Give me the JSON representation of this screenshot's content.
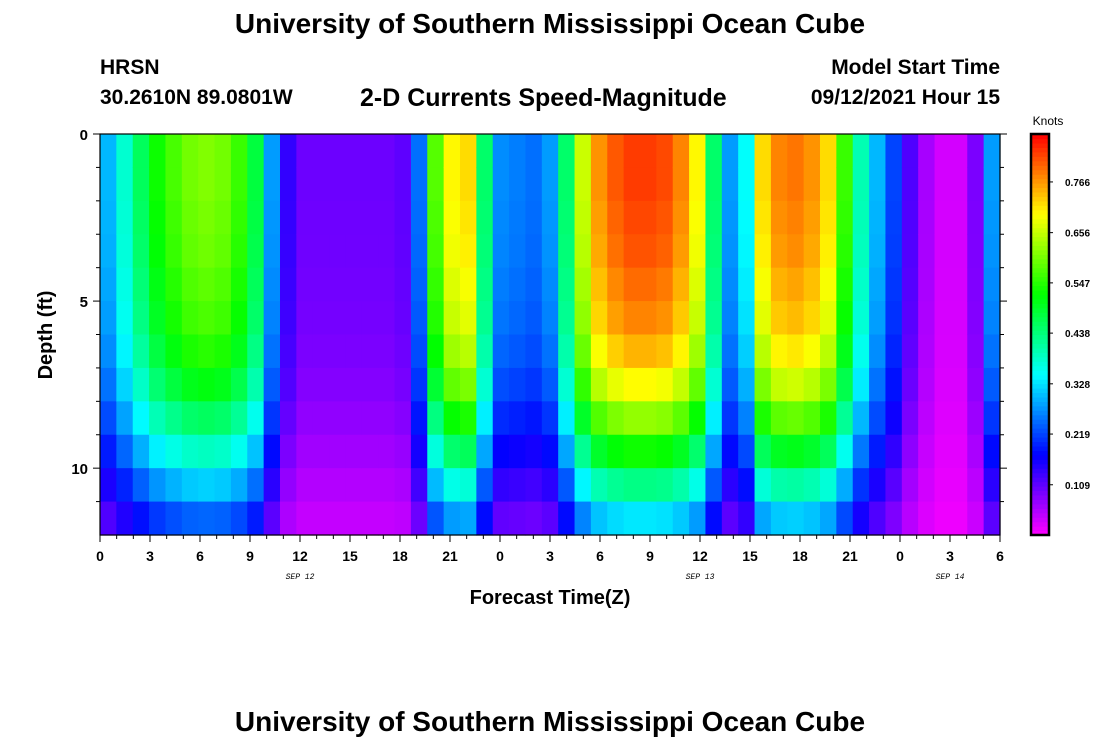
{
  "header": {
    "title": "University of Southern Mississippi Ocean Cube",
    "station": "HRSN",
    "coords": "30.2610N  89.0801W",
    "subtitle": "2-D Currents Speed-Magnitude",
    "model_label": "Model Start Time",
    "model_time": "09/12/2021 Hour 15"
  },
  "footer": {
    "title": "University of Southern Mississippi Ocean Cube"
  },
  "chart_data": {
    "type": "heatmap",
    "title": "2-D Currents Speed-Magnitude",
    "xlabel": "Forecast Time(Z)",
    "ylabel": "Depth (ft)",
    "colorbar_label": "Knots",
    "x_range_hours": [
      0,
      54
    ],
    "y_range_ft": [
      0,
      12
    ],
    "x_ticks": [
      {
        "h": 0,
        "label": "0"
      },
      {
        "h": 3,
        "label": "3"
      },
      {
        "h": 6,
        "label": "6"
      },
      {
        "h": 9,
        "label": "9"
      },
      {
        "h": 12,
        "label": "12"
      },
      {
        "h": 15,
        "label": "15"
      },
      {
        "h": 18,
        "label": "18"
      },
      {
        "h": 21,
        "label": "21"
      },
      {
        "h": 24,
        "label": "0"
      },
      {
        "h": 27,
        "label": "3"
      },
      {
        "h": 30,
        "label": "6"
      },
      {
        "h": 33,
        "label": "9"
      },
      {
        "h": 36,
        "label": "12"
      },
      {
        "h": 39,
        "label": "15"
      },
      {
        "h": 42,
        "label": "18"
      },
      {
        "h": 45,
        "label": "21"
      },
      {
        "h": 48,
        "label": "0"
      },
      {
        "h": 51,
        "label": "3"
      },
      {
        "h": 54,
        "label": "6"
      }
    ],
    "y_ticks": [
      {
        "ft": 0,
        "label": "0"
      },
      {
        "ft": 5,
        "label": "5"
      },
      {
        "ft": 10,
        "label": "10"
      }
    ],
    "date_labels": [
      {
        "h": 12,
        "label": "SEP 12"
      },
      {
        "h": 36,
        "label": "SEP 13"
      },
      {
        "h": 51,
        "label": "SEP 14"
      }
    ],
    "colorbar_ticks": [
      0.109,
      0.219,
      0.328,
      0.438,
      0.547,
      0.656,
      0.766
    ],
    "colorbar_range": [
      0.0,
      0.87
    ],
    "surface_speed_by_hour": [
      0.3,
      0.38,
      0.46,
      0.53,
      0.57,
      0.6,
      0.61,
      0.6,
      0.56,
      0.48,
      0.28,
      0.14,
      0.1,
      0.1,
      0.1,
      0.1,
      0.1,
      0.1,
      0.11,
      0.25,
      0.58,
      0.7,
      0.72,
      0.45,
      0.27,
      0.26,
      0.25,
      0.28,
      0.45,
      0.66,
      0.77,
      0.81,
      0.83,
      0.83,
      0.82,
      0.78,
      0.7,
      0.45,
      0.28,
      0.35,
      0.72,
      0.78,
      0.79,
      0.77,
      0.72,
      0.56,
      0.4,
      0.3,
      0.22,
      0.12,
      0.06,
      0.03,
      0.03,
      0.09,
      0.28
    ],
    "level_depths_ft": [
      0.5,
      1.5,
      2.5,
      3.5,
      4.5,
      5.5,
      6.5,
      7.5,
      8.5,
      9.5,
      10.5,
      11.5
    ],
    "depth_factors": [
      1.0,
      1.0,
      0.99,
      0.98,
      0.96,
      0.94,
      0.9,
      0.84,
      0.75,
      0.64,
      0.52,
      0.4
    ]
  }
}
